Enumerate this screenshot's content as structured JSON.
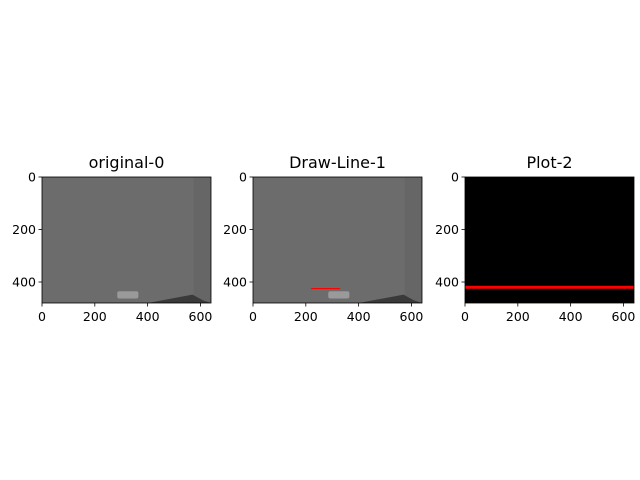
{
  "figure": {
    "background": "#ffffff"
  },
  "chart_data": [
    {
      "type": "image",
      "title": "original-0",
      "xlim": [
        0,
        640
      ],
      "ylim": [
        480,
        0
      ],
      "xticks": [
        0,
        200,
        400,
        600
      ],
      "yticks": [
        0,
        200,
        400
      ],
      "image": {
        "background_color": "#6c6c6c",
        "right_strip_color": "#666666",
        "car_color": "#9a9a9a",
        "ramp_color": "#3a3a3a"
      }
    },
    {
      "type": "image",
      "title": "Draw-Line-1",
      "xlim": [
        0,
        640
      ],
      "ylim": [
        480,
        0
      ],
      "xticks": [
        0,
        200,
        400,
        600
      ],
      "yticks": [
        0,
        200,
        400
      ],
      "image": {
        "background_color": "#6c6c6c",
        "right_strip_color": "#666666",
        "car_color": "#9a9a9a",
        "ramp_color": "#3a3a3a",
        "line": {
          "x1": 220,
          "x2": 330,
          "y": 425,
          "color": "#ff0000"
        }
      }
    },
    {
      "type": "image",
      "title": "Plot-2",
      "xlim": [
        0,
        640
      ],
      "ylim": [
        480,
        0
      ],
      "xticks": [
        0,
        200,
        400,
        600
      ],
      "yticks": [
        0,
        200,
        400
      ],
      "image": {
        "background_color": "#000000",
        "line": {
          "x1": 0,
          "x2": 640,
          "y": 420,
          "color": "#ff0000"
        }
      }
    }
  ]
}
